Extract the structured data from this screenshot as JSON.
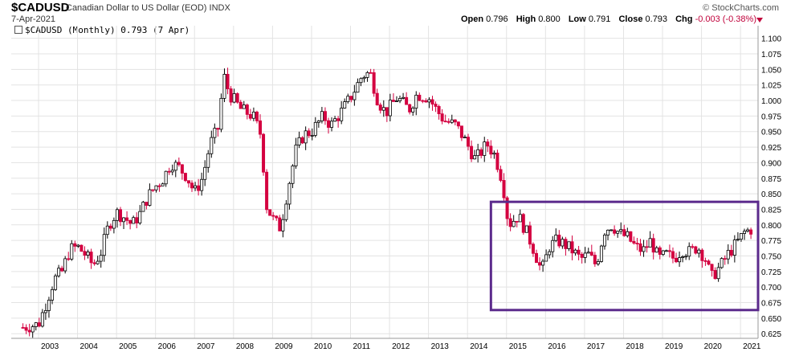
{
  "header": {
    "symbol": "$CADUSD",
    "description": "Canadian Dollar to US Dollar (EOD)",
    "exchange": "INDX",
    "date": "7-Apr-2021",
    "brand": "© StockCharts.com",
    "ohlc": {
      "open_label": "Open",
      "open": "0.796",
      "high_label": "High",
      "high": "0.800",
      "low_label": "Low",
      "low": "0.791",
      "close_label": "Close",
      "close": "0.793",
      "chg_label": "Chg",
      "chg": "-0.003 (-0.38%)"
    },
    "legend": "$CADUSD (Monthly) 0.793 (7 Apr)"
  },
  "colors": {
    "up": "#000000",
    "down": "#d40040",
    "box": "#5b2a8c",
    "grid": "#e3e3e3"
  },
  "chart_data": {
    "type": "line",
    "series": [
      {
        "values": [
          [
            2002.6,
            0.635
          ],
          [
            2003.0,
            0.64
          ],
          [
            2003.2,
            0.675
          ],
          [
            2003.4,
            0.712
          ],
          [
            2003.6,
            0.725
          ],
          [
            2003.8,
            0.76
          ],
          [
            2004.0,
            0.765
          ],
          [
            2004.2,
            0.752
          ],
          [
            2004.4,
            0.735
          ],
          [
            2004.6,
            0.756
          ],
          [
            2004.8,
            0.8
          ],
          [
            2005.0,
            0.82
          ],
          [
            2005.2,
            0.812
          ],
          [
            2005.4,
            0.8
          ],
          [
            2005.6,
            0.818
          ],
          [
            2005.8,
            0.845
          ],
          [
            2006.0,
            0.862
          ],
          [
            2006.2,
            0.875
          ],
          [
            2006.4,
            0.9
          ],
          [
            2006.6,
            0.892
          ],
          [
            2006.8,
            0.878
          ],
          [
            2007.0,
            0.852
          ],
          [
            2007.2,
            0.875
          ],
          [
            2007.4,
            0.93
          ],
          [
            2007.6,
            0.955
          ],
          [
            2007.75,
            1.04
          ],
          [
            2007.9,
            1.01
          ],
          [
            2008.2,
            0.985
          ],
          [
            2008.5,
            0.975
          ],
          [
            2008.7,
            0.945
          ],
          [
            2008.85,
            0.83
          ],
          [
            2009.0,
            0.81
          ],
          [
            2009.2,
            0.795
          ],
          [
            2009.4,
            0.86
          ],
          [
            2009.6,
            0.92
          ],
          [
            2009.8,
            0.945
          ],
          [
            2010.0,
            0.95
          ],
          [
            2010.3,
            0.975
          ],
          [
            2010.5,
            0.96
          ],
          [
            2010.8,
            0.985
          ],
          [
            2011.0,
            1.005
          ],
          [
            2011.3,
            1.04
          ],
          [
            2011.5,
            1.045
          ],
          [
            2011.7,
            1.0
          ],
          [
            2011.9,
            0.98
          ],
          [
            2012.2,
            1.005
          ],
          [
            2012.5,
            0.985
          ],
          [
            2012.7,
            1.01
          ],
          [
            2013.0,
            1.005
          ],
          [
            2013.2,
            0.985
          ],
          [
            2013.4,
            0.968
          ],
          [
            2013.7,
            0.96
          ],
          [
            2013.9,
            0.94
          ],
          [
            2014.2,
            0.905
          ],
          [
            2014.5,
            0.93
          ],
          [
            2014.7,
            0.912
          ],
          [
            2014.9,
            0.87
          ],
          [
            2015.05,
            0.8
          ],
          [
            2015.3,
            0.815
          ],
          [
            2015.5,
            0.79
          ],
          [
            2015.7,
            0.76
          ],
          [
            2015.9,
            0.725
          ],
          [
            2016.1,
            0.765
          ],
          [
            2016.3,
            0.775
          ],
          [
            2016.5,
            0.768
          ],
          [
            2016.7,
            0.758
          ],
          [
            2016.9,
            0.745
          ],
          [
            2017.1,
            0.752
          ],
          [
            2017.3,
            0.735
          ],
          [
            2017.5,
            0.79
          ],
          [
            2017.7,
            0.8
          ],
          [
            2017.9,
            0.786
          ],
          [
            2018.1,
            0.78
          ],
          [
            2018.3,
            0.765
          ],
          [
            2018.5,
            0.758
          ],
          [
            2018.7,
            0.775
          ],
          [
            2018.9,
            0.745
          ],
          [
            2019.1,
            0.752
          ],
          [
            2019.3,
            0.746
          ],
          [
            2019.5,
            0.76
          ],
          [
            2019.7,
            0.756
          ],
          [
            2019.9,
            0.765
          ],
          [
            2020.1,
            0.745
          ],
          [
            2020.25,
            0.715
          ],
          [
            2020.5,
            0.735
          ],
          [
            2020.7,
            0.755
          ],
          [
            2020.9,
            0.77
          ],
          [
            2021.1,
            0.788
          ],
          [
            2021.27,
            0.793
          ]
        ]
      }
    ],
    "y_ticks": [
      "1.100",
      "1.075",
      "1.050",
      "1.025",
      "1.000",
      "0.975",
      "0.950",
      "0.925",
      "0.900",
      "0.875",
      "0.850",
      "0.825",
      "0.800",
      "0.775",
      "0.750",
      "0.725",
      "0.700",
      "0.675",
      "0.650",
      "0.625"
    ],
    "x_ticks": [
      "2003",
      "2004",
      "2005",
      "2006",
      "2007",
      "2008",
      "2009",
      "2010",
      "2011",
      "2012",
      "2013",
      "2014",
      "2015",
      "2016",
      "2017",
      "2018",
      "2019",
      "2020",
      "2021"
    ],
    "ylim": [
      0.6175,
      1.1125
    ],
    "xlim": [
      2002.3,
      2021.45
    ],
    "grid": true,
    "annotations": [
      {
        "type": "rectangle",
        "x0": 2014.6,
        "x1": 2021.45,
        "y0": 0.663,
        "y1": 0.837
      }
    ]
  }
}
